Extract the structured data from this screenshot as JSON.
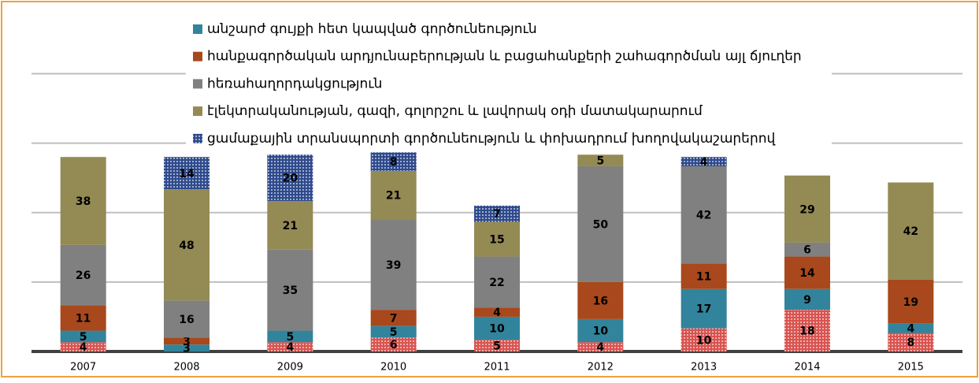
{
  "chart_data": {
    "type": "stacked_bar",
    "categories": [
      "2007",
      "2008",
      "2009",
      "2010",
      "2011",
      "2012",
      "2013",
      "2014",
      "2015"
    ],
    "series": [
      {
        "name": null,
        "color": "#d9534f",
        "pattern": "dots",
        "values": [
          4,
          null,
          4,
          6,
          5,
          4,
          10,
          18,
          8
        ]
      },
      {
        "name": "անշարժ գույքի հետ կապված գործունեություն",
        "color": "#31849b",
        "values": [
          5,
          3,
          5,
          5,
          10,
          10,
          17,
          9,
          4
        ]
      },
      {
        "name": "հանքագործական արդյունաբերության և բացահանքերի շահագործման այլ ճյուղեր",
        "color": "#a8481c",
        "values": [
          11,
          3,
          null,
          7,
          4,
          16,
          11,
          14,
          19
        ]
      },
      {
        "name": "հեռահաղորդակցություն",
        "color": "#808080",
        "values": [
          26,
          16,
          35,
          39,
          22,
          50,
          42,
          6,
          null
        ]
      },
      {
        "name": "էլեկտրականության, գազի, գոլորշու և լավորակ օդի մատակարարում",
        "color": "#948a54",
        "values": [
          38,
          48,
          21,
          21,
          15,
          5,
          null,
          29,
          42
        ]
      },
      {
        "name": "ցամաքային տրանսպորտի գործունեություն և փոխադրում խողովակաշարերով",
        "color": "#2e4a8c",
        "pattern": "dots",
        "values": [
          null,
          14,
          20,
          8,
          7,
          null,
          4,
          null,
          null
        ]
      }
    ],
    "ylim": [
      0,
      145
    ],
    "yticks": [
      0,
      30,
      60,
      90,
      120
    ],
    "grid": true,
    "legend": "top"
  }
}
